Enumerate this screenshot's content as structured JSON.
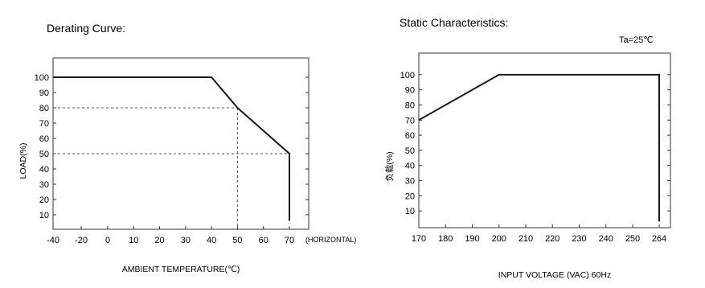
{
  "chart_data": [
    {
      "type": "line",
      "title": "Derating Curve:",
      "xlabel": "AMBIENT TEMPERATURE(℃)",
      "ylabel": "LOAD(%)",
      "x_suffix_label": "(HORIZONTAL)",
      "xlim": [
        -40,
        70
      ],
      "ylim": [
        0,
        110
      ],
      "xticks": [
        "-40",
        "-20",
        "0",
        "10",
        "20",
        "30",
        "40",
        "50",
        "60",
        "70"
      ],
      "yticks": [
        "10",
        "20",
        "30",
        "40",
        "50",
        "60",
        "70",
        "80",
        "90",
        "100"
      ],
      "series": [
        {
          "x": [
            -40,
            40,
            50,
            70,
            70
          ],
          "y": [
            100,
            100,
            80,
            50,
            6
          ]
        }
      ],
      "reference_lines": [
        {
          "x": [
            -40,
            50
          ],
          "y": [
            80,
            80
          ]
        },
        {
          "x": [
            50,
            50
          ],
          "y": [
            80,
            0
          ]
        },
        {
          "x": [
            -40,
            70
          ],
          "y": [
            50,
            50
          ]
        }
      ],
      "grid": false
    },
    {
      "type": "line",
      "title": "Static Characteristics:",
      "annotation": "Ta=25℃",
      "xlabel": "INPUT VOLTAGE (VAC) 60Hz",
      "ylabel": "负载(%)",
      "xlim": [
        170,
        264
      ],
      "ylim": [
        0,
        110
      ],
      "xticks": [
        "170",
        "180",
        "190",
        "200",
        "210",
        "220",
        "230",
        "240",
        "250",
        "264"
      ],
      "yticks": [
        "10",
        "20",
        "30",
        "40",
        "50",
        "60",
        "70",
        "80",
        "90",
        "100"
      ],
      "series": [
        {
          "x": [
            170,
            200,
            264,
            264
          ],
          "y": [
            70,
            100,
            100,
            3
          ]
        }
      ],
      "grid": false
    }
  ],
  "colors": {
    "line": "#1a1a1a",
    "frame": "#333333",
    "dash": "#555555",
    "background": "#ffffff"
  }
}
